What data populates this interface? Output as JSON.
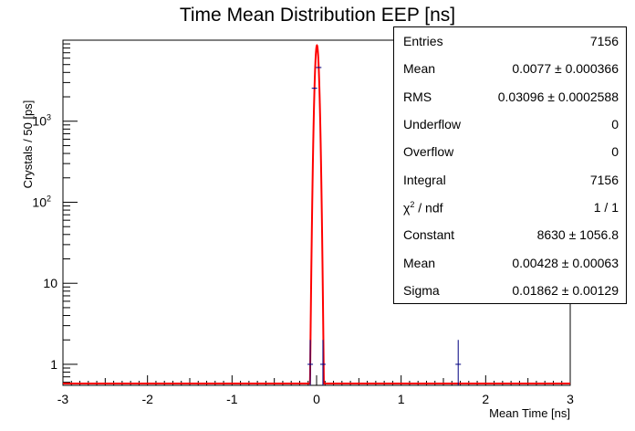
{
  "chart_data": {
    "type": "histogram",
    "title": "Time Mean Distribution EEP [ns]",
    "xlabel": "Mean Time [ns]",
    "ylabel": "Crystals / 50 [ps]",
    "xlim": [
      -3,
      3
    ],
    "ylim": [
      0.55,
      10000
    ],
    "yscale": "log",
    "x_ticks": [
      "-3",
      "-2",
      "-1",
      "0",
      "1",
      "2",
      "3"
    ],
    "y_ticks": [
      {
        "value": 1,
        "label": "1"
      },
      {
        "value": 10,
        "label": "10"
      },
      {
        "value": 100,
        "label": "10",
        "exp": "2"
      },
      {
        "value": 1000,
        "label": "10",
        "exp": "3"
      }
    ],
    "histogram_points": [
      {
        "x": -0.075,
        "y": 1,
        "err": 1
      },
      {
        "x": -0.025,
        "y": 2550,
        "err": 50
      },
      {
        "x": 0.025,
        "y": 4600,
        "err": 68
      },
      {
        "x": 0.075,
        "y": 1,
        "err": 1
      },
      {
        "x": 1.675,
        "y": 1,
        "err": 1
      }
    ],
    "fit": {
      "type": "gaus",
      "color": "#ff0000",
      "constant": 8630,
      "mean": 0.00428,
      "sigma": 0.01862
    },
    "histogram_color": "#000080"
  },
  "stats": [
    {
      "label": "Entries",
      "value": "7156"
    },
    {
      "label": "Mean",
      "value": "0.0077 ± 0.000366"
    },
    {
      "label": "RMS",
      "value": "0.03096 ± 0.0002588"
    },
    {
      "label": "Underflow",
      "value": "0"
    },
    {
      "label": "Overflow",
      "value": "0"
    },
    {
      "label": "Integral",
      "value": "7156"
    },
    {
      "label": "χ",
      "sup": "2",
      "label_suffix": " / ndf",
      "value": "1 / 1"
    },
    {
      "label": "Constant",
      "value": "8630 ± 1056.8"
    },
    {
      "label": "Mean",
      "value": "0.00428 ± 0.00063"
    },
    {
      "label": "Sigma",
      "value": "0.01862 ± 0.00129"
    }
  ]
}
